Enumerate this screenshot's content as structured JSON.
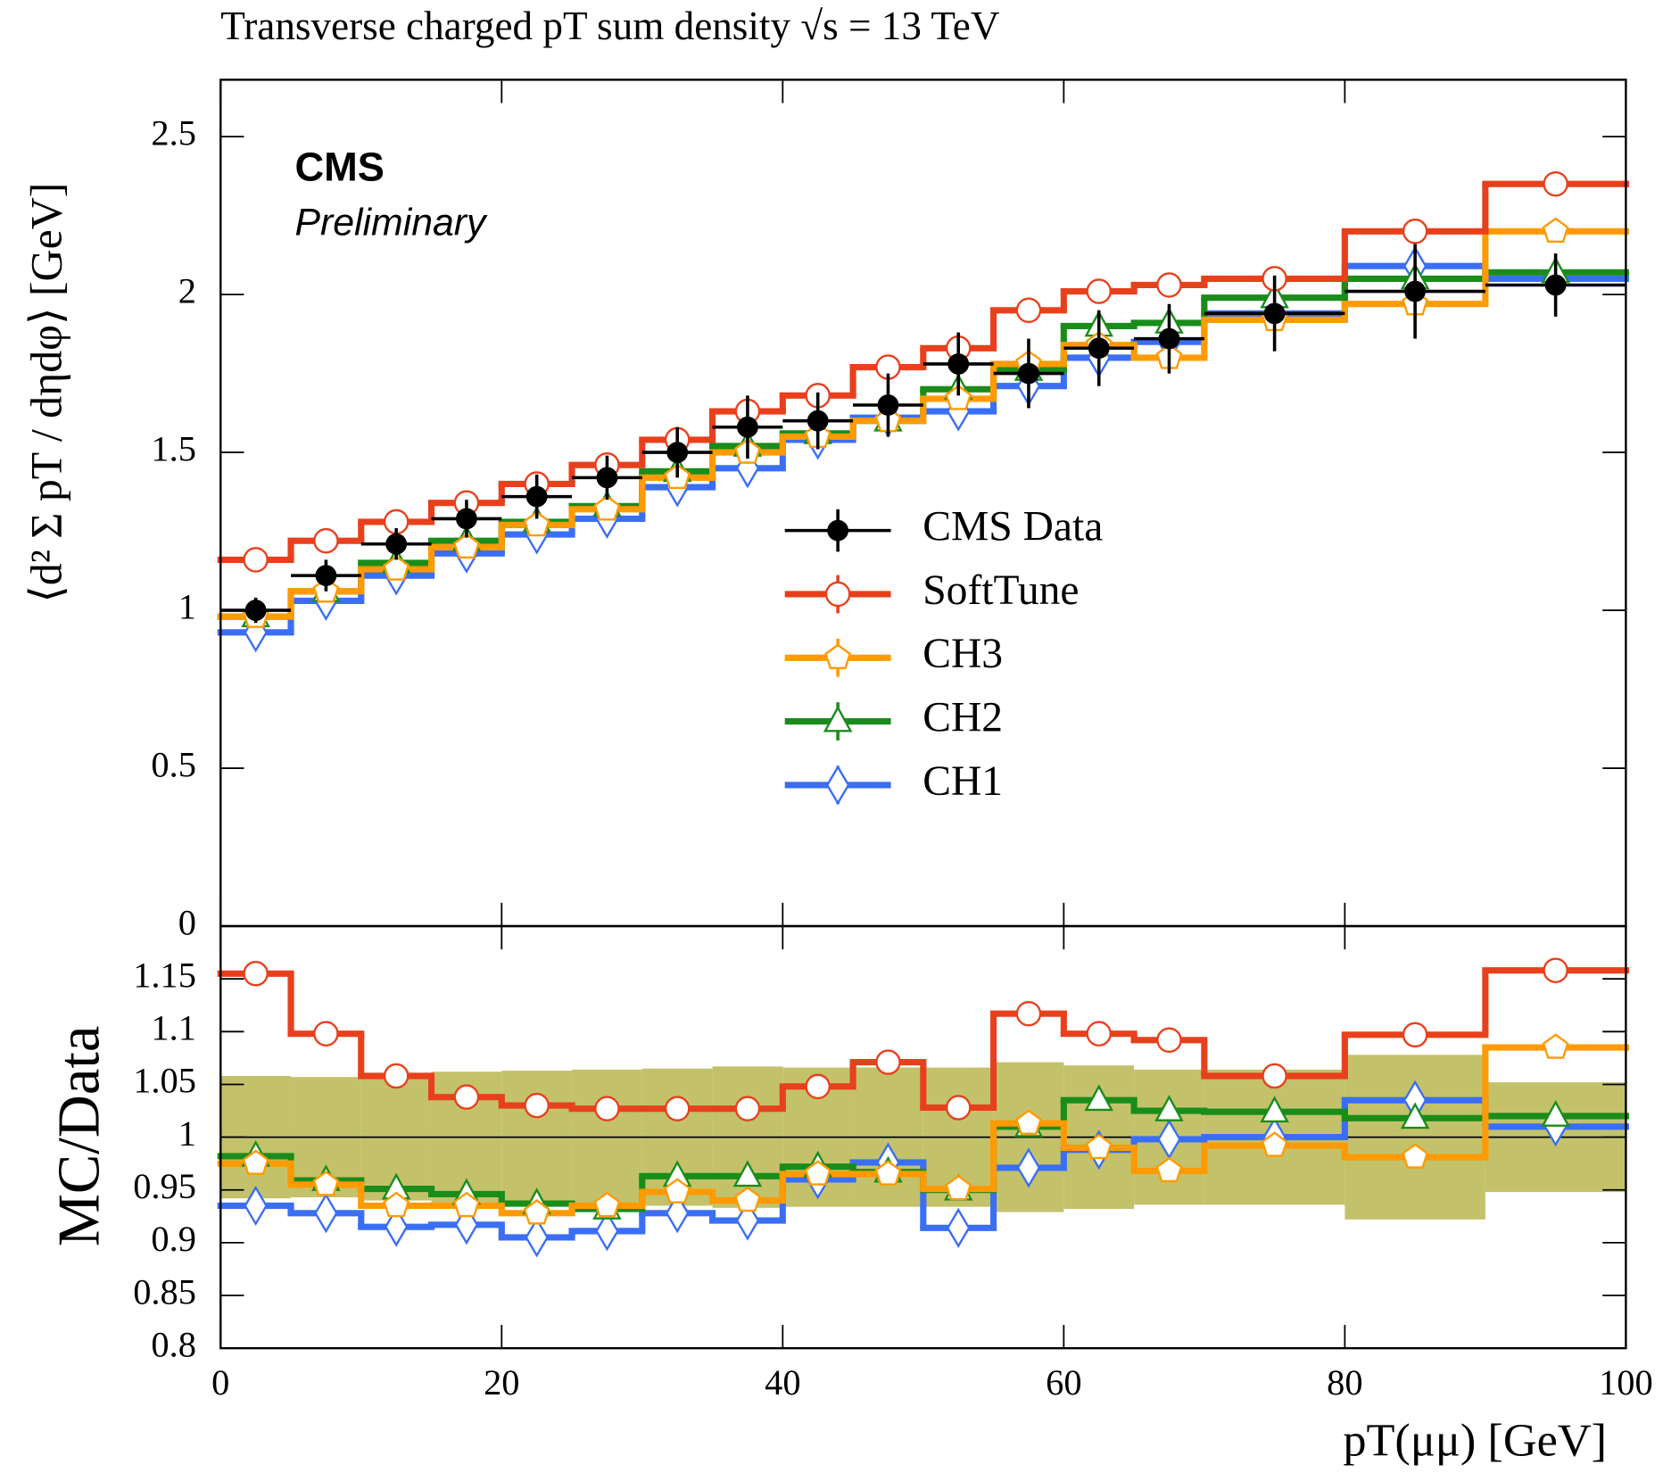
{
  "chart_data": [
    {
      "type": "histogram",
      "title": "Transverse charged pT sum density √s = 13 TeV",
      "ylabel": "⟨d² Σ pT / dηdφ⟩ [GeV]",
      "annotations": [
        "CMS",
        "Preliminary"
      ],
      "bins": [
        0,
        5,
        10,
        15,
        20,
        25,
        30,
        35,
        40,
        45,
        50,
        55,
        60,
        65,
        70,
        80,
        90,
        100
      ],
      "xlim": [
        0,
        100
      ],
      "ylim": [
        0,
        2.68
      ],
      "yticks": [
        0,
        0.5,
        1,
        1.5,
        2,
        2.5
      ],
      "legend": "center",
      "series": [
        {
          "name": "CMS Data",
          "color": "#000000",
          "marker": "circle",
          "filled": true,
          "values": [
            1.0,
            1.11,
            1.21,
            1.29,
            1.36,
            1.42,
            1.5,
            1.58,
            1.6,
            1.65,
            1.78,
            1.75,
            1.83,
            1.86,
            1.94,
            2.01,
            2.03
          ],
          "errors": [
            0.04,
            0.05,
            0.05,
            0.06,
            0.07,
            0.07,
            0.08,
            0.1,
            0.09,
            0.1,
            0.1,
            0.11,
            0.12,
            0.11,
            0.12,
            0.15,
            0.1
          ]
        },
        {
          "name": "SoftTune",
          "color": "#e8401c",
          "marker": "circle",
          "filled": false,
          "values": [
            1.16,
            1.22,
            1.28,
            1.34,
            1.4,
            1.46,
            1.54,
            1.63,
            1.68,
            1.77,
            1.83,
            1.95,
            2.01,
            2.03,
            2.05,
            2.2,
            2.35
          ]
        },
        {
          "name": "CH3",
          "color": "#ff9a00",
          "marker": "pentagon",
          "filled": false,
          "values": [
            0.98,
            1.06,
            1.13,
            1.2,
            1.27,
            1.32,
            1.42,
            1.5,
            1.55,
            1.6,
            1.67,
            1.78,
            1.84,
            1.8,
            1.92,
            1.97,
            2.2
          ]
        },
        {
          "name": "CH2",
          "color": "#1a8c1a",
          "marker": "triangle",
          "filled": false,
          "values": [
            0.98,
            1.06,
            1.15,
            1.22,
            1.28,
            1.33,
            1.44,
            1.52,
            1.56,
            1.6,
            1.7,
            1.76,
            1.9,
            1.91,
            1.99,
            2.05,
            2.07
          ]
        },
        {
          "name": "CH1",
          "color": "#3a6ef5",
          "marker": "diamond",
          "filled": false,
          "values": [
            0.93,
            1.03,
            1.11,
            1.18,
            1.24,
            1.29,
            1.39,
            1.45,
            1.54,
            1.61,
            1.63,
            1.71,
            1.8,
            1.85,
            1.94,
            2.09,
            2.05
          ]
        }
      ]
    },
    {
      "type": "histogram",
      "ylabel": "MC/Data",
      "xlabel": "pT(μμ) [GeV]",
      "bins": [
        0,
        5,
        10,
        15,
        20,
        25,
        30,
        35,
        40,
        45,
        50,
        55,
        60,
        65,
        70,
        80,
        90,
        100
      ],
      "xlim": [
        0,
        100
      ],
      "xticks": [
        0,
        20,
        40,
        60,
        80,
        100
      ],
      "ylim": [
        0.8,
        1.2
      ],
      "yticks": [
        0.8,
        0.85,
        0.9,
        0.95,
        1,
        1.05,
        1.1,
        1.15
      ],
      "reference_line": 1,
      "band": {
        "color": "#bdbb5a",
        "low": [
          0.942,
          0.943,
          0.94,
          0.938,
          0.937,
          0.936,
          0.935,
          0.933,
          0.934,
          0.934,
          0.934,
          0.929,
          0.932,
          0.936,
          0.936,
          0.922,
          0.948
        ],
        "high": [
          1.058,
          1.057,
          1.06,
          1.062,
          1.063,
          1.064,
          1.065,
          1.067,
          1.066,
          1.066,
          1.066,
          1.071,
          1.068,
          1.064,
          1.064,
          1.078,
          1.052
        ]
      },
      "series": [
        {
          "name": "SoftTune",
          "color": "#e8401c",
          "marker": "circle",
          "filled": false,
          "values": [
            1.155,
            1.098,
            1.058,
            1.038,
            1.03,
            1.027,
            1.027,
            1.027,
            1.048,
            1.071,
            1.028,
            1.117,
            1.098,
            1.092,
            1.058,
            1.097,
            1.158
          ]
        },
        {
          "name": "CH3",
          "color": "#ff9a00",
          "marker": "pentagon",
          "filled": false,
          "values": [
            0.975,
            0.955,
            0.935,
            0.935,
            0.928,
            0.935,
            0.948,
            0.94,
            0.965,
            0.965,
            0.951,
            1.013,
            0.99,
            0.968,
            0.992,
            0.981,
            1.085
          ]
        },
        {
          "name": "CH2",
          "color": "#1a8c1a",
          "marker": "triangle",
          "filled": false,
          "values": [
            0.982,
            0.959,
            0.951,
            0.946,
            0.937,
            0.932,
            0.963,
            0.963,
            0.972,
            0.967,
            0.95,
            1.01,
            1.035,
            1.025,
            1.024,
            1.018,
            1.02
          ]
        },
        {
          "name": "CH1",
          "color": "#3a6ef5",
          "marker": "diamond",
          "filled": false,
          "values": [
            0.935,
            0.928,
            0.915,
            0.917,
            0.905,
            0.911,
            0.928,
            0.921,
            0.96,
            0.976,
            0.914,
            0.971,
            0.988,
            0.998,
            1.0,
            1.035,
            1.01
          ]
        }
      ]
    }
  ]
}
